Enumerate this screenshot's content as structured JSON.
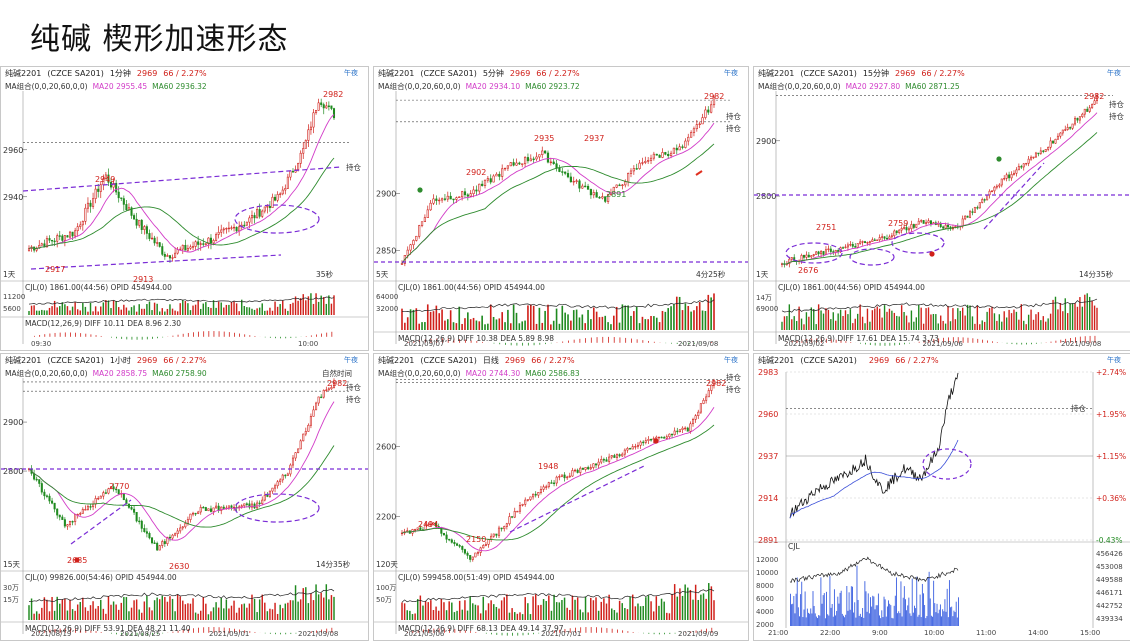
{
  "page_title": "纯碱 楔形加速形态",
  "colors": {
    "up": "#d0201a",
    "down": "#1f8a1f",
    "ma20": "#d23cc8",
    "ma60": "#2e8b2e",
    "annotation": "#7a2cd6",
    "price_line": "#111111",
    "avg_line": "#3b4fd8",
    "volume": "#3a5fe0"
  },
  "panels": [
    {
      "symbol": "纯碱2201",
      "code": "(CZCE SA201)",
      "period": "1分钟",
      "price": "2969",
      "change": "66 / 2.27%",
      "logo": "午夜",
      "ma_label": "MA组合(0,0,20,60,0,0)",
      "ma20": "MA20 2955.45",
      "ma60": "MA60 2936.32",
      "y_labels": [
        "2960",
        "2940"
      ],
      "high_label": "2982",
      "points": [
        "2949",
        "2917",
        "2913"
      ],
      "tag_hold": "持仓",
      "bottom_left": "1天",
      "bottom_right": "35秒",
      "cjl": "CJL(0)  1861.00(44:56)  OPID 454944.00",
      "vol_labels": [
        "11200",
        "5600"
      ],
      "macd": "MACD(12,26,9)   DIFF 10.11   DEA 8.96   2.30",
      "time_labels": [
        "09:30",
        "10:00"
      ]
    },
    {
      "symbol": "纯碱2201",
      "code": "(CZCE SA201)",
      "period": "5分钟",
      "price": "2969",
      "change": "66 / 2.27%",
      "logo": "午夜",
      "ma_label": "MA组合(0,0,20,60,0,0)",
      "ma20": "MA20 2934.10",
      "ma60": "MA60 2923.72",
      "y_labels": [
        "2900",
        "2850"
      ],
      "high_label": "2982",
      "points": [
        "2902",
        "2935",
        "2937",
        "2891"
      ],
      "tag_hold": "持仓",
      "tag_top": "持仓",
      "bottom_left": "5天",
      "bottom_right": "4分25秒",
      "cjl": "CJL(0)  1861.00(44:56)  OPID 454944.00",
      "vol_labels": [
        "64000",
        "32000"
      ],
      "macd": "MACD(12,26,9)   DIFF 10.38   DEA 5.89   8.98",
      "time_labels": [
        "2021/09/07",
        "2021/09/08"
      ]
    },
    {
      "symbol": "纯碱2201",
      "code": "(CZCE SA201)",
      "period": "15分钟",
      "price": "2969",
      "change": "66 / 2.27%",
      "logo": "午夜",
      "ma_label": "MA组合(0,0,20,60,0,0)",
      "ma20": "MA20 2927.80",
      "ma60": "MA60 2871.25",
      "y_labels": [
        "2900",
        "2800"
      ],
      "high_label": "2982",
      "points": [
        "2751",
        "2759",
        "2676"
      ],
      "tag_hold": "持仓",
      "tag_top": "持仓",
      "bottom_left": "1天",
      "bottom_right": "14分35秒",
      "cjl": "CJL(0)  1861.00(44:56)  OPID 454944.00",
      "vol_labels": [
        "14万",
        "69000"
      ],
      "macd": "MACD(12,26,9)   DIFF 17.61   DEA 15.74   3.73",
      "time_labels": [
        "2021/09/02",
        "2021/09/06",
        "2021/09/08"
      ]
    },
    {
      "symbol": "纯碱2201",
      "code": "(CZCE SA201)",
      "period": "1小时",
      "price": "2969",
      "change": "66 / 2.27%",
      "logo": "午夜",
      "ma_label": "MA组合(0,0,20,60,0,0)",
      "ma20": "MA20 2858.75",
      "ma60": "MA60 2758.90",
      "y_labels": [
        "2900",
        "2800"
      ],
      "high_label": "2982",
      "points": [
        "2770",
        "2685",
        "2630"
      ],
      "tag_hold": "持仓",
      "tag_top": "持仓",
      "tag_clock": "自然时间",
      "bottom_left": "15天",
      "bottom_right": "14分35秒",
      "cjl": "CJL(0)  99826.00(54:46)  OPID 454944.00",
      "vol_labels": [
        "30万",
        "15万"
      ],
      "macd": "MACD(12,26,9)   DIFF 53.91   DEA 48.21   11.40",
      "time_labels": [
        "2021/08/19",
        "2021/08/25",
        "2021/09/01",
        "2021/09/08"
      ]
    },
    {
      "symbol": "纯碱2201",
      "code": "(CZCE SA201)",
      "period": "日线",
      "price": "2969",
      "change": "66 / 2.27%",
      "logo": "午夜",
      "ma_label": "MA组合(0,0,20,60,0,0)",
      "ma20": "MA20 2744.30",
      "ma60": "MA60 2586.83",
      "y_labels": [
        "2600",
        "2200"
      ],
      "high_label": "2982",
      "points": [
        "2494",
        "2150",
        "1948"
      ],
      "tag_hold": "持仓",
      "tag_top": "持仓",
      "bottom_left": "120天",
      "bottom_right": "",
      "cjl": "CJL(0)  599458.00(51:49)  OPID 454944.00",
      "vol_labels": [
        "100万",
        "50万"
      ],
      "macd": "MACD(12,26,9)   DIFF 68.13   DEA 49.14   37.97",
      "time_labels": [
        "2021/05/06",
        "2021/07/01",
        "2021/09/09"
      ]
    },
    {
      "symbol": "纯碱2201",
      "code": "(CZCE SA201)",
      "period": "",
      "price": "2969",
      "change": "66 / 2.27%",
      "logo": "午夜",
      "y_labels": [
        "2983",
        "2960",
        "2937",
        "2914",
        "2891"
      ],
      "pct_labels": [
        "+2.74%",
        "+1.95%",
        "+1.15%",
        "+0.36%",
        "-0.43%"
      ],
      "tag_hold": "持仓",
      "cjl": "CJL",
      "vol_labels": [
        "12000",
        "10000",
        "8000",
        "6000",
        "4000",
        "2000"
      ],
      "oi_labels": [
        "456426",
        "453008",
        "449588",
        "446171",
        "442752",
        "439334"
      ],
      "time_labels": [
        "21:00",
        "22:00",
        "9:00",
        "10:00",
        "11:00",
        "14:00",
        "15:00"
      ]
    }
  ],
  "chart_data": [
    {
      "type": "candlestick",
      "title": "纯碱2201 1分钟",
      "ylim": [
        2905,
        2985
      ],
      "series": [
        {
          "name": "MA20",
          "values": [
            2955.45
          ]
        },
        {
          "name": "MA60",
          "values": [
            2936.32
          ]
        }
      ],
      "labeled_points": [
        2949,
        2917,
        2913,
        2982
      ]
    },
    {
      "type": "candlestick",
      "title": "纯碱2201 5分钟",
      "ylim": [
        2825,
        2990
      ],
      "series": [
        {
          "name": "MA20",
          "values": [
            2934.1
          ]
        },
        {
          "name": "MA60",
          "values": [
            2923.72
          ]
        }
      ],
      "labeled_points": [
        2902,
        2935,
        2937,
        2891,
        2982
      ]
    },
    {
      "type": "candlestick",
      "title": "纯碱2201 15分钟",
      "ylim": [
        2650,
        2990
      ],
      "series": [
        {
          "name": "MA20",
          "values": [
            2927.8
          ]
        },
        {
          "name": "MA60",
          "values": [
            2871.25
          ]
        }
      ],
      "labeled_points": [
        2751,
        2759,
        2676,
        2982
      ]
    },
    {
      "type": "candlestick",
      "title": "纯碱2201 1小时",
      "ylim": [
        2600,
        2990
      ],
      "series": [
        {
          "name": "MA20",
          "values": [
            2858.75
          ]
        },
        {
          "name": "MA60",
          "values": [
            2758.9
          ]
        }
      ],
      "labeled_points": [
        2770,
        2685,
        2630,
        2982
      ]
    },
    {
      "type": "candlestick",
      "title": "纯碱2201 日线",
      "ylim": [
        1900,
        2990
      ],
      "series": [
        {
          "name": "MA20",
          "values": [
            2744.3
          ]
        },
        {
          "name": "MA60",
          "values": [
            2586.83
          ]
        }
      ],
      "labeled_points": [
        2150,
        1948,
        2494,
        2982
      ]
    },
    {
      "type": "line",
      "title": "纯碱2201 分时",
      "ylim": [
        2891,
        2983
      ],
      "y_ticks": [
        2983,
        2960,
        2937,
        2914,
        2891
      ],
      "x": [
        "21:00",
        "22:00",
        "9:00",
        "10:00",
        "11:00",
        "14:00",
        "15:00"
      ]
    }
  ]
}
